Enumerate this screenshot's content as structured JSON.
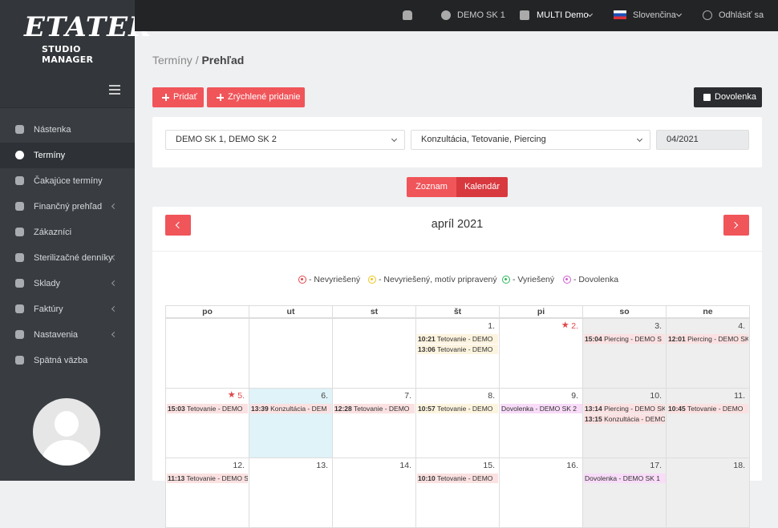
{
  "logo": {
    "title": "ETATER",
    "subtitle": "STUDIO MANAGER"
  },
  "topbar": {
    "user": "DEMO SK 1",
    "studio": "MULTI Demo",
    "language": "Slovenčina",
    "logout": "Odhlásiť sa"
  },
  "sidebar": {
    "menu": [
      {
        "label": "Nástenka",
        "submenu": false,
        "active": false
      },
      {
        "label": "Termíny",
        "submenu": false,
        "active": true
      },
      {
        "label": "Čakajúce termíny",
        "submenu": false,
        "active": false
      },
      {
        "label": "Finančný prehľad",
        "submenu": true,
        "active": false
      },
      {
        "label": "Zákazníci",
        "submenu": false,
        "active": false
      },
      {
        "label": "Sterilizačné denníky",
        "submenu": true,
        "active": false
      },
      {
        "label": "Sklady",
        "submenu": true,
        "active": false
      },
      {
        "label": "Faktúry",
        "submenu": true,
        "active": false
      },
      {
        "label": "Nastavenia",
        "submenu": true,
        "active": false
      },
      {
        "label": "Spätná väzba",
        "submenu": false,
        "active": false
      }
    ]
  },
  "breadcrumb": {
    "parent": "Termíny",
    "separator": "/",
    "current": "Prehľad"
  },
  "buttons": {
    "add": "Pridať",
    "quick_add": "Zrýchlené pridanie",
    "vacation": "Dovolenka"
  },
  "filters": {
    "studios": "DEMO SK 1, DEMO SK 2",
    "services": "Konzultácia, Tetovanie, Piercing",
    "month": "04/2021"
  },
  "view_toggle": {
    "list": "Zoznam",
    "calendar": "Kalendár"
  },
  "calendar": {
    "title": "apríl 2021",
    "legend": [
      {
        "label": "- Nevyriešený",
        "color": "#e0474c"
      },
      {
        "label": "- Nevyriešený, motív pripravený",
        "color": "#f0c419"
      },
      {
        "label": "- Vyriešený",
        "color": "#2eb85c"
      },
      {
        "label": "- Dovolenka",
        "color": "#d35ad3"
      }
    ],
    "weekdays": [
      "po",
      "ut",
      "st",
      "št",
      "pi",
      "so",
      "ne"
    ],
    "weeks": [
      [
        null,
        null,
        null,
        {
          "day": "1.",
          "events": [
            {
              "time": "10:21",
              "text": "Tetovanie - DEMO",
              "color": "#fdf4df"
            },
            {
              "time": "13:06",
              "text": "Tetovanie - DEMO",
              "color": "#fdf4df"
            }
          ]
        },
        {
          "day": "2.",
          "holiday": true,
          "events": []
        },
        {
          "day": "3.",
          "events": [
            {
              "time": "15:04",
              "text": "Piercing - DEMO S",
              "color": "#fbe1e1"
            }
          ]
        },
        {
          "day": "4.",
          "events": [
            {
              "time": "12:01",
              "text": "Piercing - DEMO SK",
              "color": "#fbe1e1"
            }
          ]
        }
      ],
      [
        {
          "day": "5.",
          "holiday": true,
          "events": [
            {
              "time": "15:03",
              "text": "Tetovanie - DEMO",
              "color": "#fbe1e1"
            }
          ]
        },
        {
          "day": "6.",
          "today": true,
          "events": [
            {
              "time": "13:39",
              "text": "Konzultácia - DEM",
              "color": "#fbe1e1"
            }
          ]
        },
        {
          "day": "7.",
          "events": [
            {
              "time": "12:28",
              "text": "Tetovanie - DEMO",
              "color": "#fbe1e1"
            }
          ]
        },
        {
          "day": "8.",
          "events": [
            {
              "time": "10:57",
              "text": "Tetovanie - DEMO",
              "color": "#fdf4df"
            }
          ]
        },
        {
          "day": "9.",
          "events": [
            {
              "text": "Dovolenka - DEMO SK 2",
              "color": "#f8dcf8"
            }
          ]
        },
        {
          "day": "10.",
          "events": [
            {
              "time": "13:14",
              "text": "Piercing - DEMO SK",
              "color": "#fbe1e1"
            },
            {
              "time": "13:15",
              "text": "Konzultácia - DEMO",
              "color": "#fbe1e1"
            }
          ]
        },
        {
          "day": "11.",
          "events": [
            {
              "time": "10:45",
              "text": "Tetovanie - DEMO",
              "color": "#fbe1e1"
            }
          ]
        }
      ],
      [
        {
          "day": "12.",
          "events": [
            {
              "time": "11:13",
              "text": "Tetovanie - DEMO S",
              "color": "#fbe1e1"
            }
          ]
        },
        {
          "day": "13.",
          "events": []
        },
        {
          "day": "14.",
          "events": []
        },
        {
          "day": "15.",
          "events": [
            {
              "time": "10:10",
              "text": "Tetovanie - DEMO",
              "color": "#fbe1e1"
            }
          ]
        },
        {
          "day": "16.",
          "events": []
        },
        {
          "day": "17.",
          "events": [
            {
              "text": "Dovolenka - DEMO SK 1",
              "color": "#f8dcf8"
            }
          ]
        },
        {
          "day": "18.",
          "events": []
        }
      ]
    ]
  }
}
